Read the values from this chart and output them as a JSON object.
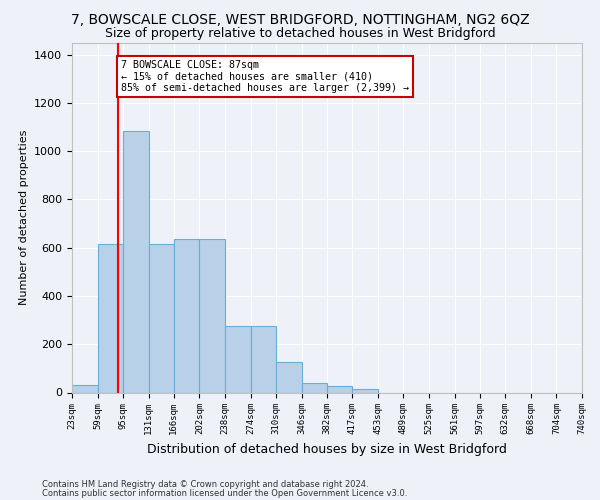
{
  "title": "7, BOWSCALE CLOSE, WEST BRIDGFORD, NOTTINGHAM, NG2 6QZ",
  "subtitle": "Size of property relative to detached houses in West Bridgford",
  "xlabel": "Distribution of detached houses by size in West Bridgford",
  "ylabel": "Number of detached properties",
  "footnote1": "Contains HM Land Registry data © Crown copyright and database right 2024.",
  "footnote2": "Contains public sector information licensed under the Open Government Licence v3.0.",
  "bin_edges": [
    23,
    59,
    95,
    131,
    166,
    202,
    238,
    274,
    310,
    346,
    382,
    417,
    453,
    489,
    525,
    561,
    597,
    632,
    668,
    704,
    740
  ],
  "bar_heights": [
    30,
    615,
    1085,
    615,
    635,
    635,
    275,
    275,
    125,
    40,
    25,
    15,
    0,
    0,
    0,
    0,
    0,
    0,
    0,
    0
  ],
  "bar_color": "#b8d0e8",
  "bar_edge_color": "#6aaed6",
  "red_line_x": 87,
  "ylim": [
    0,
    1450
  ],
  "yticks": [
    0,
    200,
    400,
    600,
    800,
    1000,
    1200,
    1400
  ],
  "annotation_text": "7 BOWSCALE CLOSE: 87sqm\n← 15% of detached houses are smaller (410)\n85% of semi-detached houses are larger (2,399) →",
  "annotation_box_color": "#ffffff",
  "annotation_box_edge_color": "#cc0000",
  "background_color": "#eef2f8",
  "grid_color": "#ffffff",
  "title_fontsize": 10,
  "subtitle_fontsize": 9,
  "xlabel_fontsize": 9,
  "ylabel_fontsize": 8
}
